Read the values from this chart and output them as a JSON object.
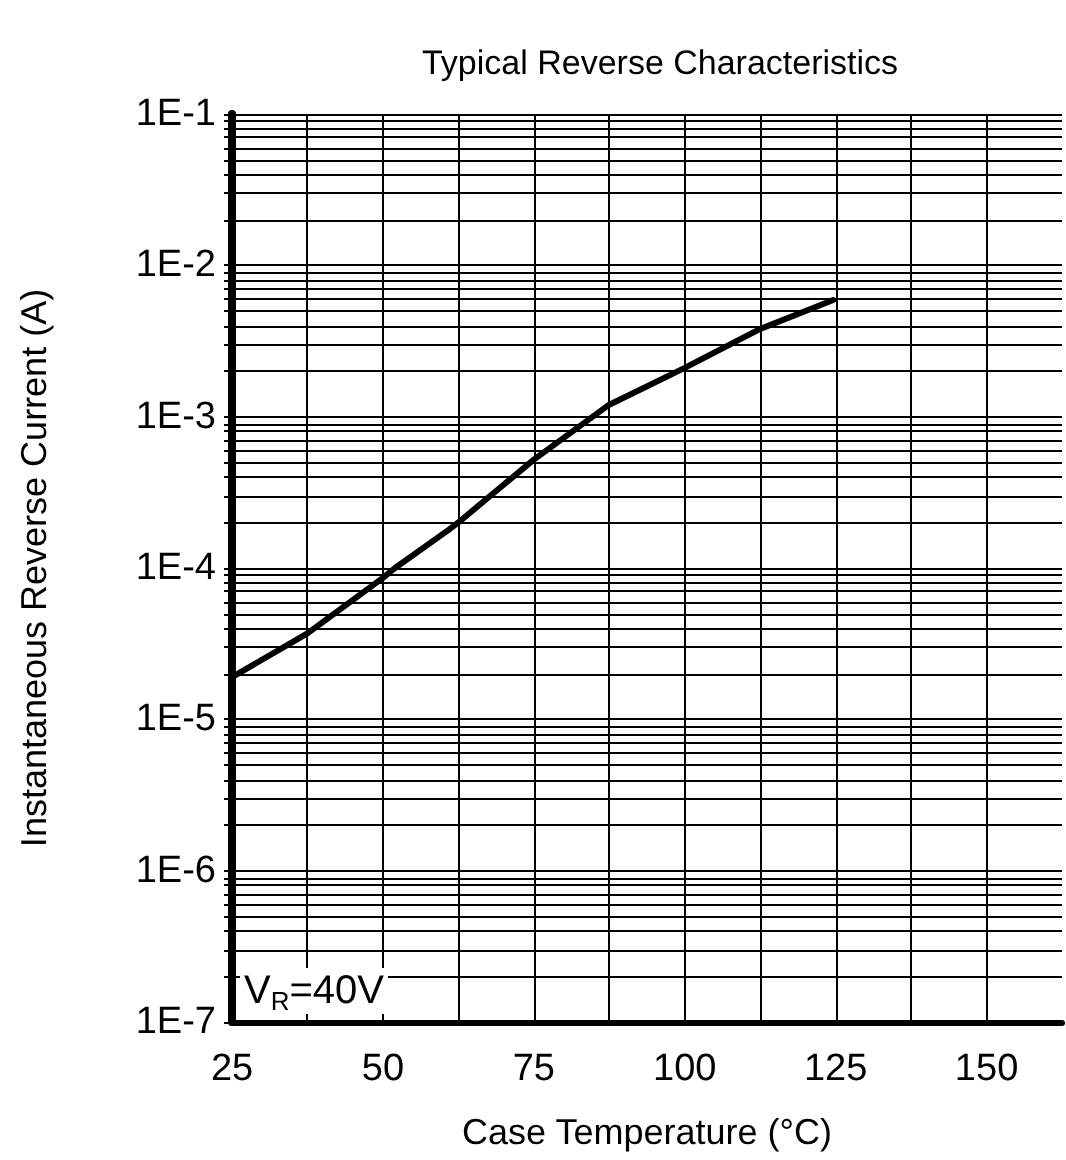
{
  "chart_data": {
    "type": "line",
    "title": "Typical Reverse Characteristics",
    "xlabel": "Case Temperature (°C)",
    "ylabel": "Instantaneous Reverse Current (A)",
    "annotations": [
      "V$_{R}$=40V"
    ],
    "x": [
      25,
      37.5,
      50,
      52,
      61,
      62.5,
      75,
      87.5,
      100,
      112.5,
      124.6
    ],
    "series": [
      {
        "color": "#000000",
        "values": [
          1.9e-05,
          3.7e-05,
          8.6e-05,
          0.0001,
          0.00018,
          0.0002,
          0.00052,
          0.0012,
          0.0021,
          0.0038,
          0.0059
        ]
      }
    ],
    "xlim": [
      25,
      162.5
    ],
    "xticks": [
      25,
      {
        "value": 37.5,
        "label": null
      },
      50,
      {
        "value": 62.5,
        "label": null
      },
      75,
      {
        "value": 87.5,
        "label": null
      },
      100,
      {
        "value": 112.5,
        "label": null
      },
      125,
      {
        "value": 137.5,
        "label": null
      },
      150
    ],
    "ylim": [
      1e-07,
      0.1
    ],
    "yticks": [
      {
        "value": 1e-07,
        "label": "1E-7"
      },
      {
        "value": 2e-07,
        "label": null
      },
      {
        "value": 3e-07,
        "label": null
      },
      {
        "value": 4e-07,
        "label": null
      },
      {
        "value": 5e-07,
        "label": null
      },
      {
        "value": 6e-07,
        "label": null
      },
      {
        "value": 7e-07,
        "label": null
      },
      {
        "value": 8e-07,
        "label": null
      },
      {
        "value": 9e-07,
        "label": null
      },
      {
        "value": 1e-06,
        "label": "1E-6"
      },
      {
        "value": 2e-06,
        "label": null
      },
      {
        "value": 3e-06,
        "label": null
      },
      {
        "value": 4e-06,
        "label": null
      },
      {
        "value": 5e-06,
        "label": null
      },
      {
        "value": 6e-06,
        "label": null
      },
      {
        "value": 7e-06,
        "label": null
      },
      {
        "value": 8e-06,
        "label": null
      },
      {
        "value": 9e-06,
        "label": null
      },
      {
        "value": 1e-05,
        "label": "1E-5"
      },
      {
        "value": 2e-05,
        "label": null
      },
      {
        "value": 3e-05,
        "label": null
      },
      {
        "value": 4e-05,
        "label": null
      },
      {
        "value": 5e-05,
        "label": null
      },
      {
        "value": 6e-05,
        "label": null
      },
      {
        "value": 7e-05,
        "label": null
      },
      {
        "value": 8e-05,
        "label": null
      },
      {
        "value": 9e-05,
        "label": null
      },
      {
        "value": 0.0001,
        "label": "1E-4"
      },
      {
        "value": 0.0002,
        "label": null
      },
      {
        "value": 0.0003,
        "label": null
      },
      {
        "value": 0.0004,
        "label": null
      },
      {
        "value": 0.0005,
        "label": null
      },
      {
        "value": 0.0006,
        "label": null
      },
      {
        "value": 0.0007,
        "label": null
      },
      {
        "value": 0.0008,
        "label": null
      },
      {
        "value": 0.0009,
        "label": null
      },
      {
        "value": 0.001,
        "label": "1E-3"
      },
      {
        "value": 0.002,
        "label": null
      },
      {
        "value": 0.003,
        "label": null
      },
      {
        "value": 0.004,
        "label": null
      },
      {
        "value": 0.005,
        "label": null
      },
      {
        "value": 0.006,
        "label": null
      },
      {
        "value": 0.007,
        "label": null
      },
      {
        "value": 0.008,
        "label": null
      },
      {
        "value": 0.009,
        "label": null
      },
      {
        "value": 0.01,
        "label": "1E-2"
      },
      {
        "value": 0.02,
        "label": null
      },
      {
        "value": 0.03,
        "label": null
      },
      {
        "value": 0.04,
        "label": null
      },
      {
        "value": 0.05,
        "label": null
      },
      {
        "value": 0.06,
        "label": null
      },
      {
        "value": 0.07,
        "label": null
      },
      {
        "value": 0.08,
        "label": null
      },
      {
        "value": 0.09,
        "label": null
      },
      {
        "value": 0.1,
        "label": "1E-1"
      }
    ],
    "log": true,
    "grid": true,
    "marker": "none",
    "line_style": "solid"
  }
}
